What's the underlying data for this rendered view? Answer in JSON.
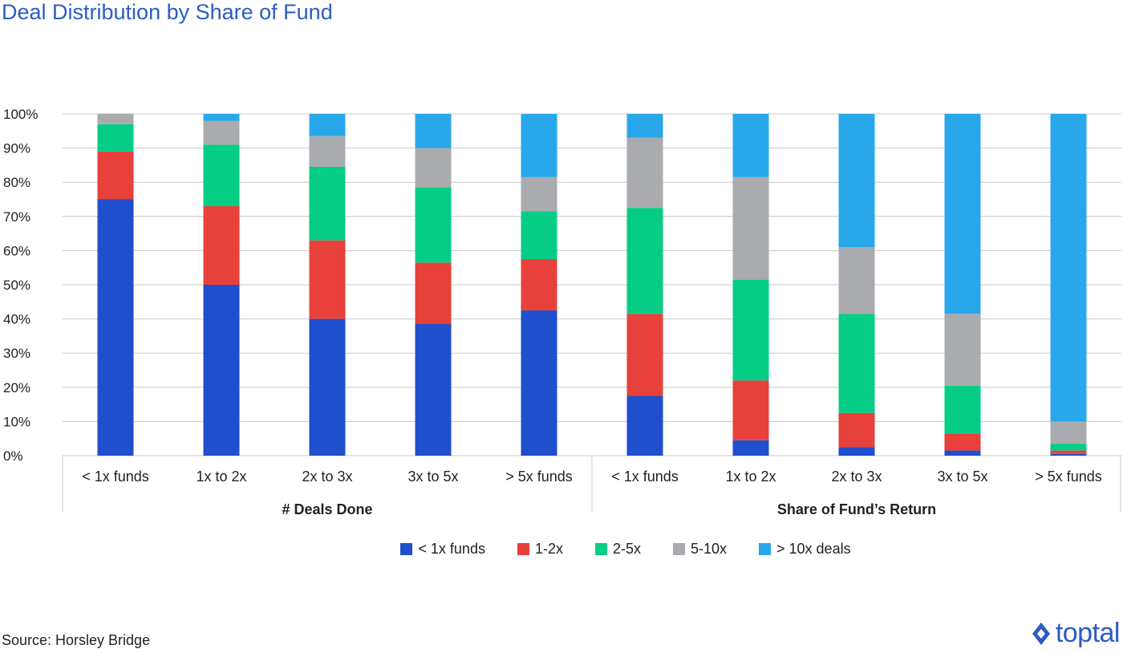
{
  "title": "Deal Distribution by Share of Fund",
  "source": "Source: Horsley Bridge",
  "brand": {
    "name": "toptal",
    "icon": "toptal-logo-icon",
    "color": "#2c5cc4"
  },
  "chart_data": {
    "type": "bar",
    "stacked": true,
    "ylim": [
      0,
      100
    ],
    "y_ticks": [
      "0%",
      "10%",
      "20%",
      "30%",
      "40%",
      "50%",
      "60%",
      "70%",
      "80%",
      "90%",
      "100%"
    ],
    "grid": true,
    "legend_position": "bottom",
    "groups": [
      {
        "label": "# Deals Done",
        "categories": [
          "< 1x funds",
          "1x to 2x",
          "2x to 3x",
          "3x to 5x",
          "> 5x funds"
        ]
      },
      {
        "label": "Share of Fund’s Return",
        "categories": [
          "< 1x funds",
          "1x to 2x",
          "2x to 3x",
          "3x to 5x",
          "> 5x funds"
        ]
      }
    ],
    "series": [
      {
        "name": "< 1x funds",
        "color": "#1f4fcc",
        "values": [
          75,
          50,
          40,
          38.5,
          42.5,
          17.5,
          4.5,
          2.5,
          1.5,
          0.5
        ]
      },
      {
        "name": "1-2x",
        "color": "#e8403a",
        "values": [
          14,
          23,
          23,
          18,
          15,
          24,
          17.5,
          10,
          5,
          1
        ]
      },
      {
        "name": "2-5x",
        "color": "#05cd85",
        "values": [
          8,
          18,
          21.5,
          22,
          14,
          31,
          29.5,
          29,
          14,
          2
        ]
      },
      {
        "name": "5-10x",
        "color": "#a9abae",
        "values": [
          3,
          7,
          9,
          11.5,
          10,
          20.5,
          30,
          19.5,
          21,
          6.5
        ]
      },
      {
        "name": "> 10x deals",
        "color": "#28a8ea",
        "values": [
          0,
          2,
          6.5,
          10,
          18.5,
          7,
          18.5,
          39,
          58.5,
          90
        ]
      }
    ]
  }
}
